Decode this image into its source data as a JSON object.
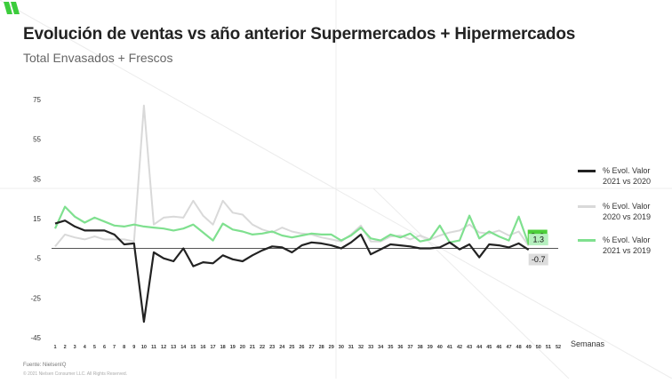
{
  "title": "Evolución de ventas vs año anterior Supermercados + Hipermercados",
  "subtitle": "Total Envasados + Frescos",
  "source": "Fuente: NielsenIQ",
  "copyright": "© 2021 Nielsen Consumer LLC. All Rights Reserved.",
  "colors": {
    "series1": "#222222",
    "series2": "#d9d9d9",
    "series3": "#7fe08f",
    "badge_green": "#4ccf3a",
    "badge_light": "#b6f0bf",
    "badge_grey": "#dcdcdc"
  },
  "chart_data": {
    "type": "line",
    "title": "Evolución de ventas vs año anterior Supermercados + Hipermercados",
    "subtitle": "Total Envasados + Frescos",
    "xlabel": "Semanas",
    "ylabel": "",
    "ylim": [
      -45,
      75
    ],
    "yticks": [
      75,
      55,
      35,
      15,
      -5,
      -25,
      -45
    ],
    "grid": false,
    "reference_line": 0,
    "legend_position": "right",
    "x": [
      1,
      2,
      3,
      4,
      5,
      6,
      7,
      8,
      9,
      10,
      11,
      12,
      13,
      14,
      15,
      16,
      17,
      18,
      19,
      20,
      21,
      22,
      23,
      24,
      25,
      26,
      27,
      28,
      29,
      30,
      31,
      32,
      33,
      34,
      35,
      36,
      37,
      38,
      39,
      40,
      41,
      42,
      43,
      44,
      45,
      46,
      47,
      48,
      49,
      50,
      51,
      52
    ],
    "series": [
      {
        "name": "% Evol. Valor 2021 vs 2020",
        "values": [
          12.5,
          14,
          11,
          9,
          9,
          9,
          7,
          2,
          2.5,
          -37,
          -2,
          -5,
          -6.5,
          0,
          -9,
          -7,
          -7.5,
          -3.5,
          -5.5,
          -6.5,
          -3.5,
          -1,
          1,
          0.5,
          -2,
          1.5,
          3,
          2.5,
          1.5,
          0,
          3,
          7,
          -3,
          -0.5,
          2,
          1.5,
          1,
          0,
          0,
          0.5,
          3,
          -0.5,
          2,
          -4.5,
          2,
          1.5,
          0.5,
          2.5,
          -0.7,
          null,
          null,
          null
        ]
      },
      {
        "name": "% Evol. Valor 2020 vs 2019",
        "values": [
          1,
          7,
          5.5,
          4.5,
          6,
          4.5,
          4.5,
          4.5,
          3.5,
          72,
          12,
          15.5,
          16,
          15.5,
          24,
          16.5,
          12,
          24,
          18,
          17,
          12,
          9.5,
          8,
          10.5,
          8.5,
          7.5,
          7,
          5.5,
          4.5,
          3.5,
          7,
          11.5,
          3.5,
          3.5,
          6,
          6.5,
          4.5,
          6.5,
          4.5,
          6.5,
          8,
          9,
          12,
          8,
          7.5,
          9,
          6.5,
          8.5,
          1.3,
          null,
          null,
          null
        ]
      },
      {
        "name": "% Evol. Valor 2021 vs 2019",
        "values": [
          10,
          21,
          16,
          13,
          15.5,
          13.5,
          11.5,
          11,
          12,
          11,
          10.5,
          10,
          9,
          10,
          12,
          8,
          4,
          12.5,
          9.5,
          8.5,
          7,
          7.5,
          8.5,
          6.5,
          5.5,
          6.5,
          7.5,
          7,
          7,
          4,
          6.5,
          10.5,
          5,
          4,
          7,
          5.5,
          7.5,
          3.5,
          4.5,
          11.5,
          3,
          4,
          16.5,
          5,
          8.5,
          6,
          4,
          16,
          2.0,
          null,
          null,
          null
        ]
      }
    ],
    "end_labels": {
      "series1": "-0.7",
      "series2": "1.3",
      "series3": "2.0"
    }
  }
}
